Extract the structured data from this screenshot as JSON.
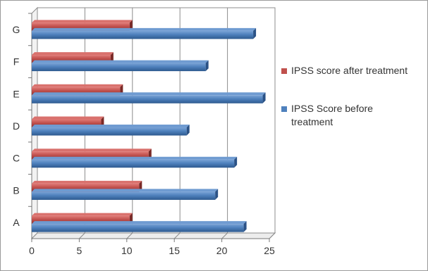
{
  "chart_data": {
    "type": "bar",
    "orientation": "horizontal",
    "categories": [
      "A",
      "B",
      "C",
      "D",
      "E",
      "F",
      "G"
    ],
    "series": [
      {
        "name": "IPSS score after treatment",
        "color": "#c0504d",
        "values": [
          10.3,
          11.3,
          12.3,
          7.3,
          9.3,
          8.3,
          10.3
        ]
      },
      {
        "name": "IPSS Score before treatment",
        "color": "#4f81bd",
        "values": [
          22.3,
          19.3,
          21.3,
          16.3,
          24.3,
          18.3,
          23.3
        ]
      }
    ],
    "xlim": [
      0,
      25
    ],
    "xticks": [
      "0",
      "5",
      "10",
      "15",
      "20",
      "25"
    ],
    "grid": true,
    "legend_position": "right",
    "legend_lines": [
      [
        "IPSS score after treatment"
      ],
      [
        "IPSS Score before",
        "treatment"
      ]
    ],
    "title": "",
    "xlabel": "",
    "ylabel": ""
  }
}
